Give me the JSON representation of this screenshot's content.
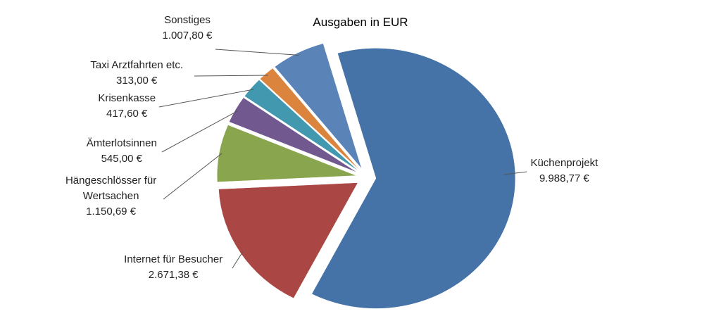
{
  "chart_data": {
    "type": "pie",
    "title": "Ausgaben in EUR",
    "slices": [
      {
        "name": "Küchenprojekt",
        "value": 9988.77,
        "label": "9.988,77 €",
        "color": "#4572a7"
      },
      {
        "name": "Internet für Besucher",
        "value": 2671.38,
        "label": "2.671,38 €",
        "color": "#aa4643"
      },
      {
        "name": "Hängeschlösser für Wertsachen",
        "name_lines": [
          "Hängeschlösser für",
          "Wertsachen"
        ],
        "value": 1150.69,
        "label": "1.150,69 €",
        "color": "#89a54e"
      },
      {
        "name": "Ämterlotsinnen",
        "value": 545.0,
        "label": "545,00 €",
        "color": "#71588f"
      },
      {
        "name": "Krisenkasse",
        "value": 417.6,
        "label": "417,60 €",
        "color": "#4198af"
      },
      {
        "name": "Taxi Arztfahrten etc.",
        "value": 313.0,
        "label": "313,00 €",
        "color": "#db843d"
      },
      {
        "name": "Sonstiges",
        "value": 1007.8,
        "label": "1.007,80 €",
        "color": "#5a83b8"
      }
    ],
    "exploded": true,
    "legend": "none"
  }
}
